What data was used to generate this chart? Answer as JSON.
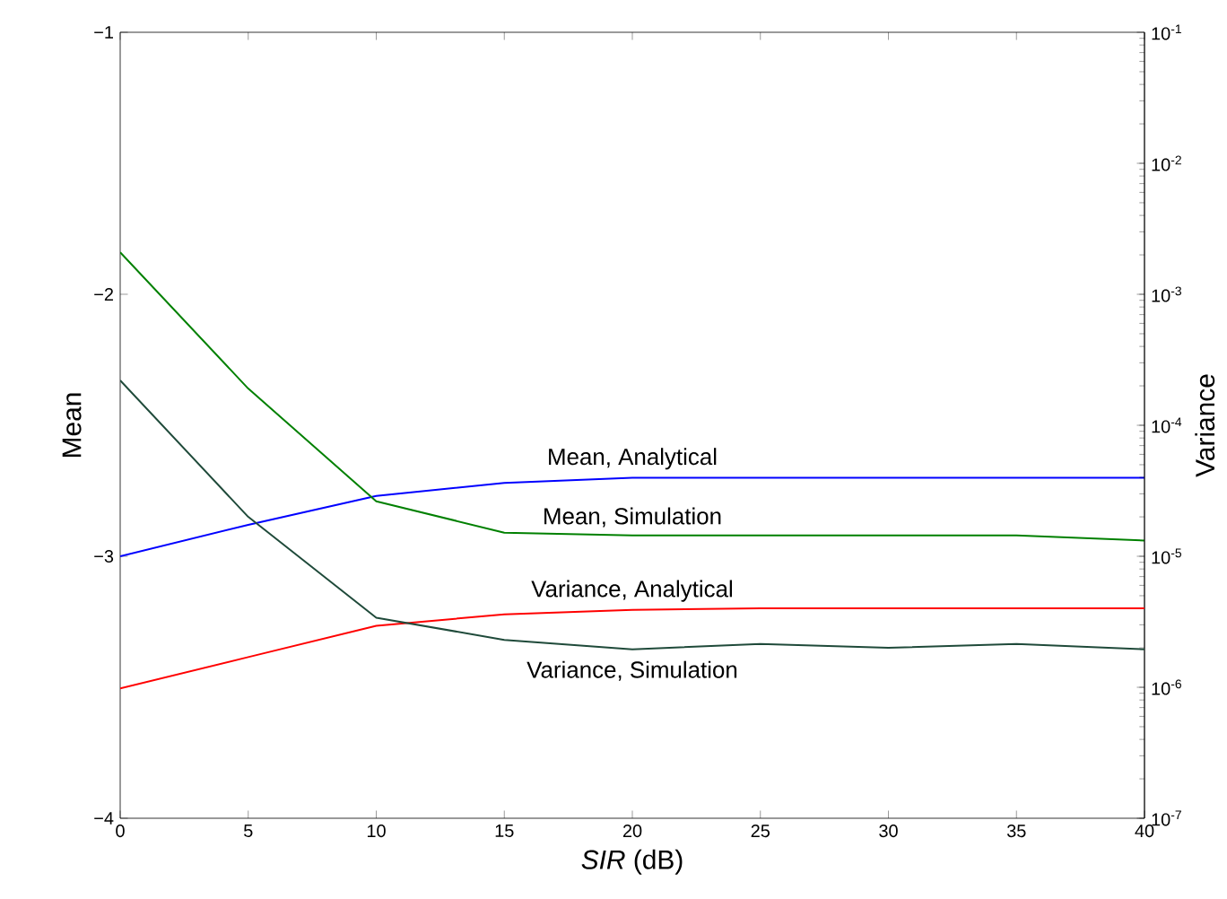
{
  "chart_data": {
    "type": "line",
    "xlabel": "*SIR* (dB)",
    "ylabel": "Mean",
    "y2label": "Variance",
    "x": [
      0,
      5,
      10,
      15,
      20,
      25,
      30,
      35,
      40
    ],
    "series": [
      {
        "name": "Mean, Analytical",
        "color": "#0000ff",
        "values": [
          -3.0,
          -2.88,
          -2.77,
          -2.72,
          -2.7,
          -2.7,
          -2.7,
          -2.7,
          -2.7
        ]
      },
      {
        "name": "Mean, Simulation",
        "color": "#008000",
        "values": [
          -1.84,
          -2.36,
          -2.79,
          -2.91,
          -2.92,
          -2.92,
          -2.92,
          -2.92,
          -2.94
        ]
      },
      {
        "name": "Variance, Analytical",
        "color": "#ff0000",
        "axis": "y2",
        "values": [
          9.8e-07,
          1.7e-06,
          2.95e-06,
          3.6e-06,
          3.9e-06,
          4e-06,
          4e-06,
          4e-06,
          4e-06
        ]
      },
      {
        "name": "Variance, Simulation",
        "color": "#1f4a3a",
        "axis": "y2",
        "values": [
          0.00022,
          2e-05,
          3.4e-06,
          2.3e-06,
          1.95e-06,
          2.14e-06,
          2e-06,
          2.14e-06,
          1.95e-06
        ]
      }
    ],
    "xlim": [
      0,
      40
    ],
    "xticks": [
      0,
      5,
      10,
      15,
      20,
      25,
      30,
      35,
      40
    ],
    "ylim": [
      -4,
      -1
    ],
    "yticks": [
      {
        "value": -4,
        "label": "−4"
      },
      {
        "value": -3,
        "label": "−3"
      },
      {
        "value": -2,
        "label": "−2"
      },
      {
        "value": -1,
        "label": "−1"
      }
    ],
    "y2lim": [
      1e-07,
      0.1
    ],
    "log": "y2",
    "y2ticks": [
      {
        "value": 1e-07,
        "label": "10$^{-7}$"
      },
      {
        "value": 1e-06,
        "label": "10$^{-6}$"
      },
      {
        "value": 1e-05,
        "label": "10$^{-5}$"
      },
      {
        "value": 0.0001,
        "label": "10$^{-4}$"
      },
      {
        "value": 0.001,
        "label": "10$^{-3}$"
      },
      {
        "value": 0.01,
        "label": "10$^{-2}$"
      },
      {
        "value": 0.1,
        "label": "10$^{-1}$"
      }
    ],
    "grid": false,
    "legend": false,
    "marker": "none",
    "line_style": "solid"
  }
}
